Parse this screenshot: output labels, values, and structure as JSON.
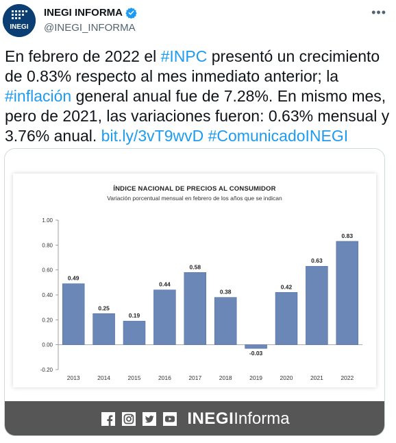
{
  "account": {
    "display_name": "INEGI INFORMA",
    "handle": "@INEGI_INFORMA",
    "avatar_text": "INEGI",
    "verified": true
  },
  "tweet": {
    "text_1": "En febrero de 2022 el ",
    "hashtag_inpc": "#INPC",
    "text_2": " presentó un crecimiento de 0.83% respecto al mes inmediato anterior; la ",
    "hashtag_inflacion": "#inflación",
    "text_3": " general anual fue de 7.28%. En mismo mes, pero de 2021, las variaciones fueron: 0.63% mensual y 3.76% anual. ",
    "link": "bit.ly/3vT9wvD",
    "text_4": " ",
    "hashtag_comunicado": "#ComunicadoINEGI"
  },
  "media_footer": {
    "brand_strong": "INEGI",
    "brand_light": "Informa",
    "icons": [
      "facebook-icon",
      "instagram-icon",
      "twitter-icon",
      "youtube-icon"
    ]
  },
  "colors": {
    "bar": "#6b87b8",
    "bar_stroke": "#4a6699",
    "link": "#1d9bf0",
    "footer": "#565656"
  },
  "chart_data": {
    "type": "bar",
    "title": "ÍNDICE NACIONAL DE PRECIOS AL CONSUMIDOR",
    "subtitle": "Variación porcentual mensual en febrero de los años que se indican",
    "categories": [
      "2013",
      "2014",
      "2015",
      "2016",
      "2017",
      "2018",
      "2019",
      "2020",
      "2021",
      "2022"
    ],
    "values": [
      0.49,
      0.25,
      0.19,
      0.44,
      0.58,
      0.38,
      -0.03,
      0.42,
      0.63,
      0.83
    ],
    "data_labels": [
      "0.49",
      "0.25",
      "0.19",
      "0.44",
      "0.58",
      "0.38",
      "-0.03",
      "0.42",
      "0.63",
      "0.83"
    ],
    "y_ticks": [
      "1.00",
      "0.80",
      "0.60",
      "0.40",
      "0.20",
      "0.00",
      "-0.20"
    ],
    "ylim": [
      -0.2,
      1.0
    ],
    "grid": false,
    "xlabel": "",
    "ylabel": ""
  }
}
